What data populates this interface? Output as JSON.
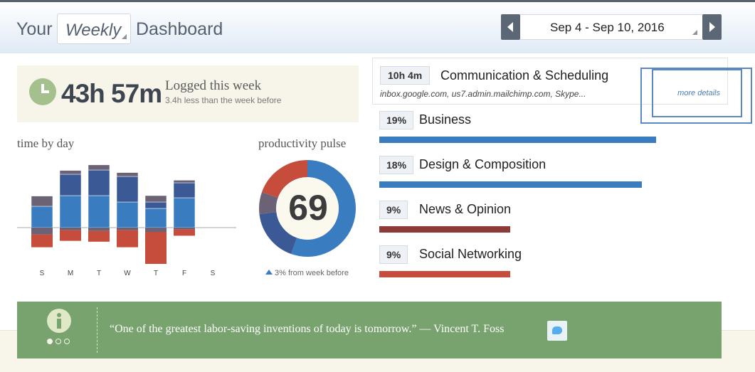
{
  "header": {
    "your": "Your",
    "period_select": "Weekly",
    "dashboard": "Dashboard",
    "date_range": "Sep 4 - Sep 10, 2016"
  },
  "logged": {
    "hours": "43h 57m",
    "label": "Logged this week",
    "sub": "3.4h less than the week before"
  },
  "time_by_day": {
    "title": "time by day",
    "days": [
      "S",
      "M",
      "T",
      "W",
      "T",
      "F",
      "S"
    ]
  },
  "pulse": {
    "title": "productivity pulse",
    "score": "69",
    "change": "3% from week before"
  },
  "colors": {
    "very_productive": "#3a7cc0",
    "productive": "#3b5a95",
    "neutral": "#6c6275",
    "distracting": "#9c4a48",
    "very_distracting": "#c64c3c",
    "quote_bg": "#79a36e"
  },
  "top_category": {
    "time": "10h 4m",
    "name": "Communication & Scheduling",
    "sites": "inbox.google.com, us7.admin.mailchimp.com, Skype...",
    "more": "more details"
  },
  "categories": [
    {
      "pct": "19%",
      "name": "Business",
      "share": 19,
      "color": "#3a7cc0"
    },
    {
      "pct": "18%",
      "name": "Design & Composition",
      "share": 18,
      "color": "#3a7cc0"
    },
    {
      "pct": "9%",
      "name": "News & Opinion",
      "share": 9,
      "color": "#8e3a38"
    },
    {
      "pct": "9%",
      "name": "Social Networking",
      "share": 9,
      "color": "#c64c3c"
    }
  ],
  "quote": {
    "text": "“One of the greatest labor-saving inventions of today is tomorrow.” — Vincent T. Foss"
  },
  "chart_data": {
    "type": "bar",
    "title": "time by day",
    "categories": [
      "S",
      "M",
      "T",
      "W",
      "T",
      "F",
      "S"
    ],
    "series": [
      {
        "values": [
          1.0,
          1.5,
          1.5,
          1.2,
          0.9,
          1.4,
          0
        ]
      },
      {
        "values": [
          0.0,
          1.0,
          1.2,
          1.2,
          0.3,
          0.7,
          0
        ]
      },
      {
        "values": [
          0.8,
          0.3,
          0.4,
          0.3,
          0.5,
          0.2,
          0
        ]
      },
      {
        "values": [
          0.6,
          0.5,
          0.5,
          0.8,
          1.5,
          0.3,
          0
        ]
      }
    ]
  }
}
